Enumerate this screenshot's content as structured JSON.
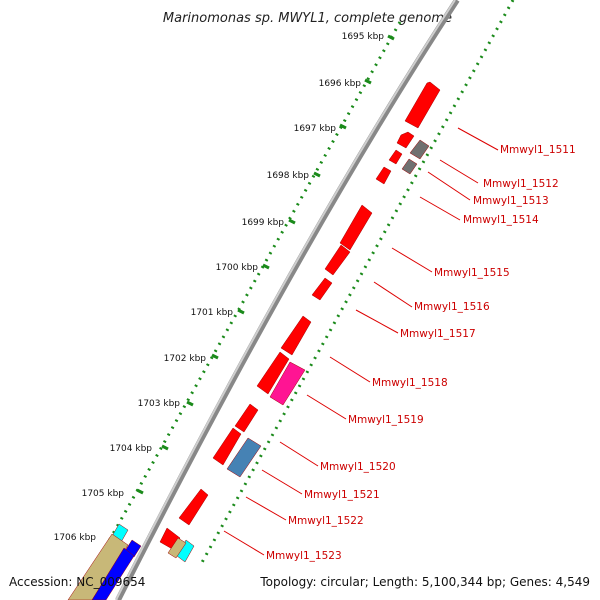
{
  "title": "Marinomonas sp. MWYL1, complete genome",
  "accession": "Accession: NC_009654",
  "topology": "Topology: circular; Length: 5,100,344 bp; Genes: 4,549",
  "kbp_labels": [
    "1695 kbp",
    "1696 kbp",
    "1697 kbp",
    "1698 kbp",
    "1699 kbp",
    "1700 kbp",
    "1701 kbp",
    "1702 kbp",
    "1703 kbp",
    "1704 kbp",
    "1705 kbp",
    "1706 kbp"
  ],
  "gene_labels": [
    "Mmwyl1_1511",
    "Mmwyl1_1512",
    "Mmwyl1_1513",
    "Mmwyl1_1514",
    "Mmwyl1_1515",
    "Mmwyl1_1516",
    "Mmwyl1_1517",
    "Mmwyl1_1518",
    "Mmwyl1_1519",
    "Mmwyl1_1520",
    "Mmwyl1_1521",
    "Mmwyl1_1522",
    "Mmwyl1_1523"
  ],
  "colors": {
    "gene_red": "#ff0000",
    "gene_magenta": "#ff1493",
    "gene_steelblue": "#4682b4",
    "gene_gray": "#707070",
    "gene_cyan": "#00ffff",
    "gene_khaki": "#c8b878",
    "gene_blue": "#0000ff",
    "backbone": "#8a8a8a",
    "dots": "#1a8a1a",
    "label": "#cc0000"
  }
}
